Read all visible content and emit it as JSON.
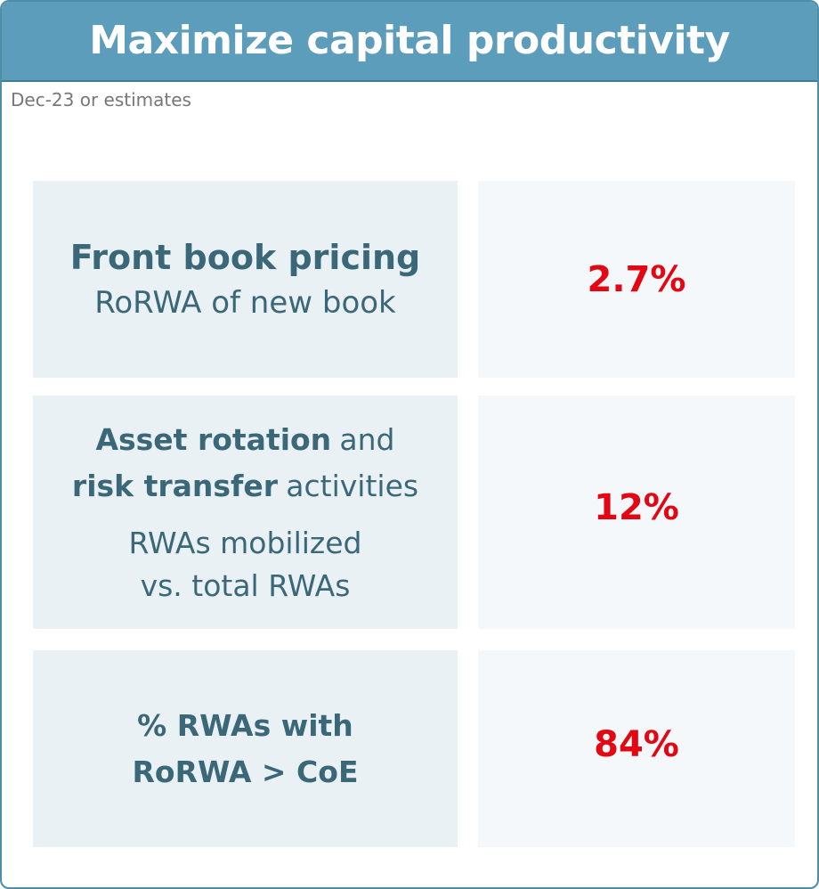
{
  "header": {
    "title": "Maximize capital productivity"
  },
  "subtitle": "Dec-23 or estimates",
  "rows": [
    {
      "heading": [
        [
          {
            "text": "Front book pricing",
            "bold": true
          }
        ]
      ],
      "detail": [
        [
          {
            "text": "RoRWA of new book"
          }
        ]
      ],
      "value": "2.7%"
    },
    {
      "heading": [
        [
          {
            "text": "Asset rotation",
            "bold": true
          },
          {
            "text": "and"
          }
        ],
        [
          {
            "text": "risk transfer",
            "bold": true
          },
          {
            "text": "activities"
          }
        ]
      ],
      "detail": [
        [
          {
            "text": "RWAs mobilized"
          }
        ],
        [
          {
            "text": "vs. total RWAs"
          }
        ]
      ],
      "value": "12%"
    },
    {
      "heading": [
        [
          {
            "text": "% RWAs with",
            "bold": true
          }
        ],
        [
          {
            "text": "RoRWA > CoE",
            "bold": true
          }
        ]
      ],
      "detail": [],
      "value": "84%"
    }
  ]
}
